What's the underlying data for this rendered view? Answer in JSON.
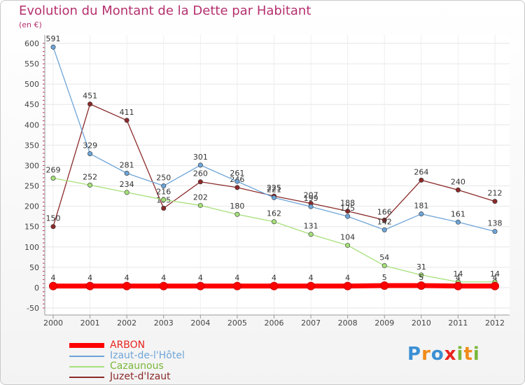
{
  "chart_data": {
    "type": "line",
    "title": "Evolution du Montant de la Dette par Habitant",
    "subtitle": "(en €)",
    "xlabel": "",
    "ylabel": "",
    "ylim": [
      -50,
      600
    ],
    "yticks": [
      -50,
      0,
      50,
      100,
      150,
      200,
      250,
      300,
      350,
      400,
      450,
      500,
      550,
      600
    ],
    "categories": [
      "2000",
      "2001",
      "2002",
      "2003",
      "2004",
      "2005",
      "2006",
      "2007",
      "2008",
      "2009",
      "2010",
      "2011",
      "2012"
    ],
    "series": [
      {
        "name": "ARBON",
        "color": "#ff0000",
        "values": [
          4,
          4,
          4,
          4,
          4,
          4,
          4,
          4,
          4,
          5,
          5,
          4,
          4
        ]
      },
      {
        "name": "Izaut-de-l'Hôtel",
        "color": "#6ea5d8",
        "values": [
          591,
          329,
          281,
          250,
          301,
          261,
          221,
          199,
          175,
          142,
          181,
          161,
          138
        ]
      },
      {
        "name": "Cazaunous",
        "color": "#a6e07a",
        "values": [
          269,
          252,
          234,
          216,
          202,
          180,
          162,
          131,
          104,
          54,
          31,
          14,
          14
        ]
      },
      {
        "name": "Juzet-d'Izaut",
        "color": "#8b2a2a",
        "values": [
          150,
          451,
          411,
          195,
          260,
          246,
          225,
          207,
          188,
          166,
          264,
          240,
          212
        ]
      }
    ],
    "legend_position": "bottom-left"
  },
  "logo": {
    "text": "Proxiti",
    "letters": [
      "P",
      "r",
      "o",
      "x",
      "i",
      "t",
      "i"
    ],
    "colors": [
      "#3b8fd4",
      "#f08c1a",
      "#3b8fd4",
      "#e8231f",
      "#7ab83a",
      "#f08c1a",
      "#7ab83a"
    ]
  }
}
